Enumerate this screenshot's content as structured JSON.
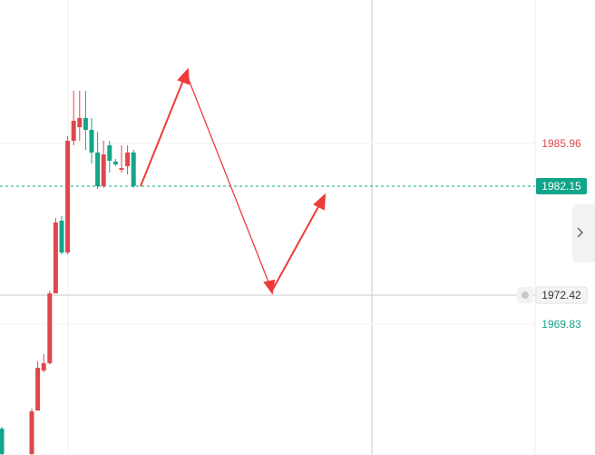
{
  "chart_data": {
    "type": "candlestick",
    "open": [
      1960.51,
      null,
      null,
      null,
      null,
      1958.24,
      1962.13,
      1965.7,
      1966.35,
      1972.58,
      1979.07,
      1976.23,
      1986.2,
      1987.41,
      1988.23,
      1987.17,
      1985.15,
      1982.15,
      1985.79,
      1984.34,
      1983.61,
      1983.93,
      1985.15
    ],
    "high": [
      1960.67,
      null,
      null,
      null,
      null,
      1962.29,
      1966.51,
      1967.16,
      1972.83,
      1979.31,
      1979.47,
      1986.6,
      1990.66,
      1990.66,
      1990.66,
      1988.23,
      1987.01,
      1986.2,
      1986.2,
      1984.58,
      1985.79,
      1985.79,
      1985.39
    ],
    "low": [
      1958.16,
      null,
      null,
      null,
      null,
      1958.16,
      1962.13,
      1965.53,
      1966.26,
      1972.58,
      1976.07,
      1976.07,
      1985.79,
      1986.2,
      1985.39,
      1984.17,
      1981.9,
      1981.99,
      1983.36,
      1983.93,
      1983.36,
      1983.2,
      1981.99
    ],
    "close": [
      1958.24,
      null,
      null,
      null,
      null,
      1962.05,
      1965.94,
      1966.35,
      1972.58,
      1978.91,
      1976.23,
      1986.2,
      1987.98,
      1988.23,
      1987.17,
      1985.15,
      1982.15,
      1984.98,
      1984.42,
      1984.09,
      1983.77,
      1985.15,
      1982.15
    ],
    "up_color": "#e0474c",
    "down_color": "#13a58a",
    "ylim": [
      1958.16,
      1998.76
    ],
    "price_lines": [
      {
        "value": 1985.96,
        "color": "#e0474c",
        "style": "text"
      },
      {
        "value": 1982.15,
        "color": "#13a58a",
        "style": "box"
      },
      {
        "value": 1972.42,
        "color": "#9a9a9a",
        "style": "crosshair"
      },
      {
        "value": 1969.83,
        "color": "#13a58a",
        "style": "text"
      }
    ]
  }
}
